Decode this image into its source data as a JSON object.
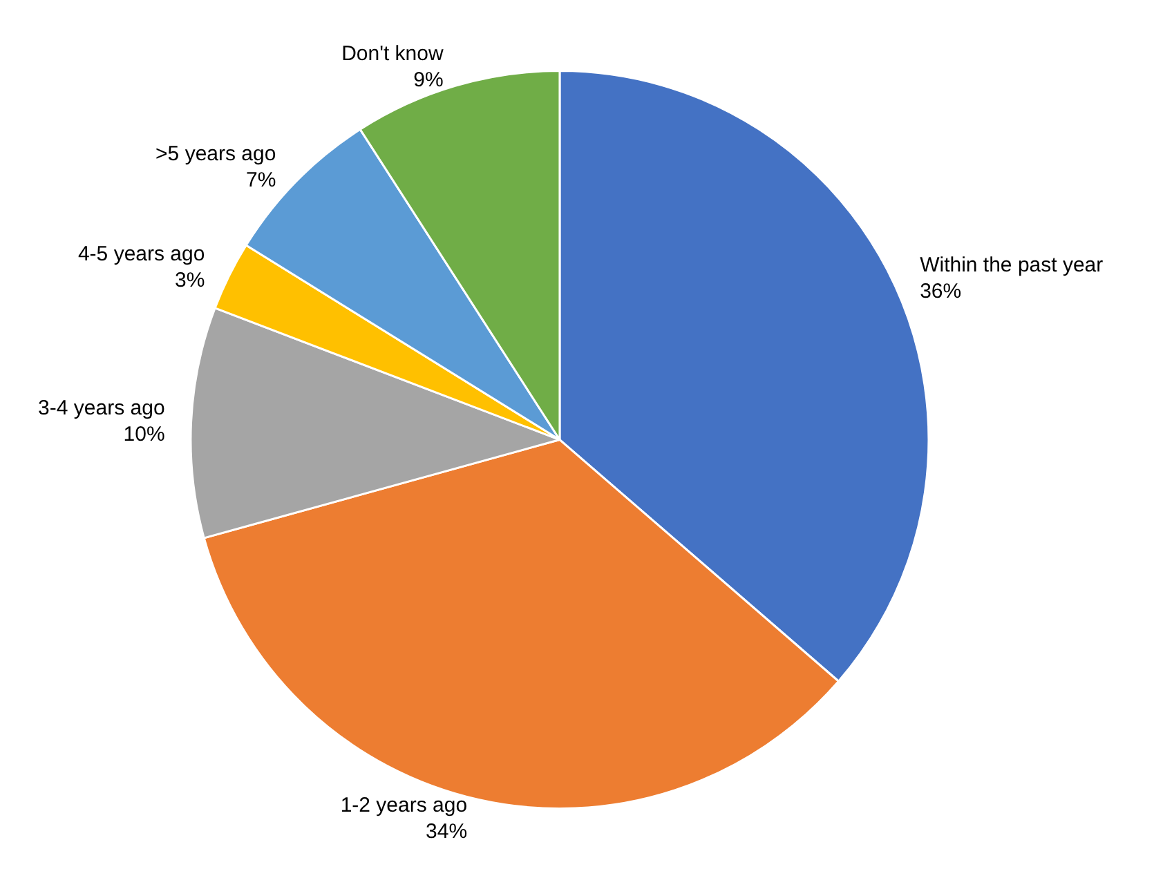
{
  "chart_data": {
    "type": "pie",
    "categories": [
      "Within the past year",
      "1-2 years ago",
      "3-4 years ago",
      "4-5 years ago",
      ">5 years ago",
      "Don't know"
    ],
    "values": [
      36,
      34,
      10,
      3,
      7,
      9
    ],
    "value_labels": [
      "36%",
      "34%",
      "10%",
      "3%",
      "7%",
      "9%"
    ],
    "colors": [
      "#4472c4",
      "#ed7d31",
      "#a5a5a5",
      "#ffc000",
      "#5b9bd5",
      "#70ad47"
    ],
    "legend": false
  }
}
